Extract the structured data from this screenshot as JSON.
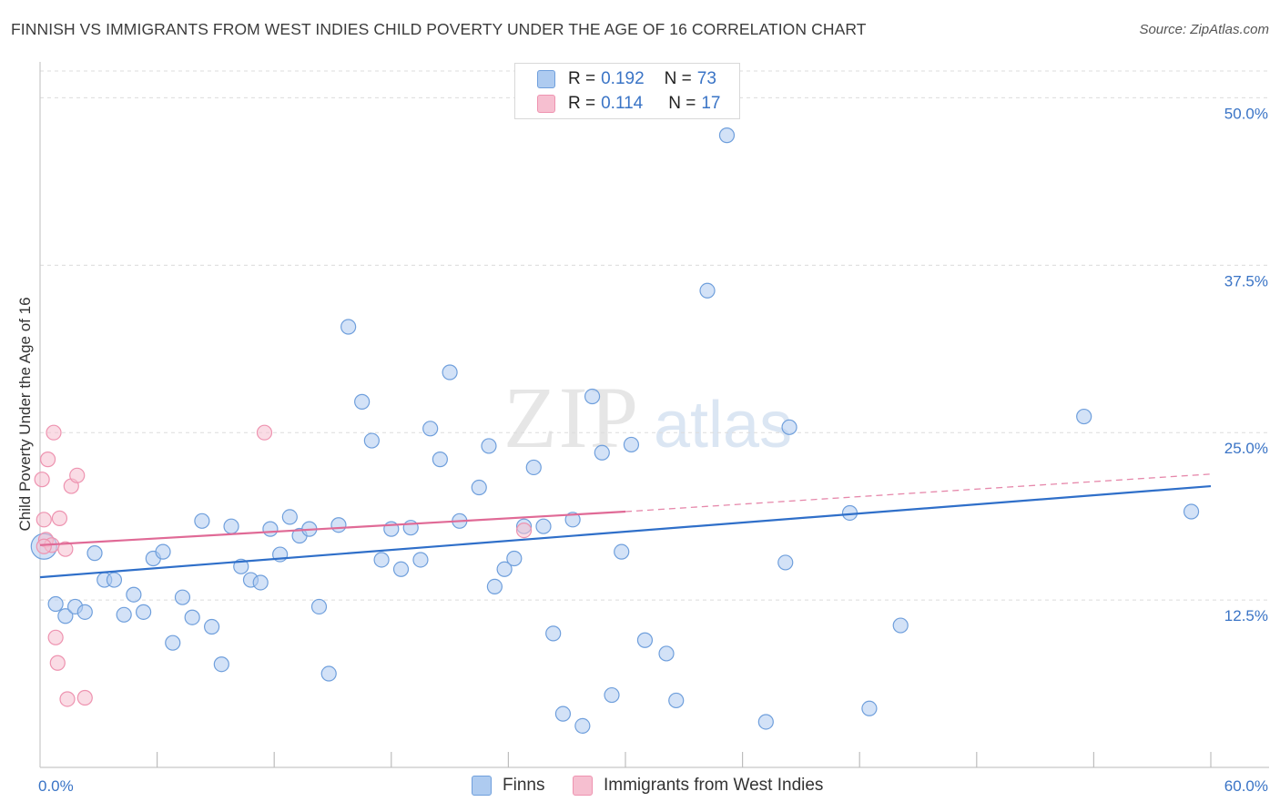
{
  "title": "FINNISH VS IMMIGRANTS FROM WEST INDIES CHILD POVERTY UNDER THE AGE OF 16 CORRELATION CHART",
  "source": "Source: ZipAtlas.com",
  "watermark": {
    "zip": "ZIP",
    "atlas": "atlas"
  },
  "legend": {
    "r_label": "R =",
    "n_label": "N =",
    "finns": {
      "r": "0.192",
      "n": "73"
    },
    "westindies": {
      "r": "0.114",
      "n": "17"
    }
  },
  "bottom_legend": {
    "finns": "Finns",
    "westindies": "Immigrants from West Indies"
  },
  "chart_data": {
    "type": "scatter",
    "title": "FINNISH VS IMMIGRANTS FROM WEST INDIES CHILD POVERTY UNDER THE AGE OF 16 CORRELATION CHART",
    "xlabel": "",
    "ylabel": "Child Poverty Under the Age of 16",
    "xlim": [
      0,
      60
    ],
    "ylim": [
      0,
      52
    ],
    "x_tick_labels": [
      "0.0%",
      "60.0%"
    ],
    "y_tick_values": [
      12.5,
      25.0,
      37.5,
      50.0
    ],
    "y_tick_labels": [
      "12.5%",
      "25.0%",
      "37.5%",
      "50.0%"
    ],
    "grid": true,
    "legend_position": "top-center",
    "colors": {
      "finns_fill": "#aecbf0",
      "finns_stroke": "#6f9fdc",
      "finns_line": "#2f6fc9",
      "wi_fill": "#f6bfd0",
      "wi_stroke": "#ee93b0",
      "wi_line": "#e06a96",
      "axis_text": "#3a74c6"
    },
    "series": [
      {
        "name": "Finns",
        "r": 0.192,
        "n": 73,
        "trend": {
          "x": [
            0,
            60
          ],
          "y": [
            14.2,
            21.0
          ]
        },
        "points": [
          [
            0.2,
            16.5
          ],
          [
            0.8,
            12.2
          ],
          [
            1.3,
            11.3
          ],
          [
            1.8,
            12.0
          ],
          [
            2.3,
            11.6
          ],
          [
            2.8,
            16.0
          ],
          [
            3.3,
            14.0
          ],
          [
            3.8,
            14.0
          ],
          [
            4.3,
            11.4
          ],
          [
            4.8,
            12.9
          ],
          [
            5.3,
            11.6
          ],
          [
            5.8,
            15.6
          ],
          [
            6.3,
            16.1
          ],
          [
            6.8,
            9.3
          ],
          [
            7.3,
            12.7
          ],
          [
            7.8,
            11.2
          ],
          [
            8.3,
            18.4
          ],
          [
            8.8,
            10.5
          ],
          [
            9.3,
            7.7
          ],
          [
            9.8,
            18.0
          ],
          [
            10.3,
            15.0
          ],
          [
            10.8,
            14.0
          ],
          [
            11.3,
            13.8
          ],
          [
            11.8,
            17.8
          ],
          [
            12.3,
            15.9
          ],
          [
            12.8,
            18.7
          ],
          [
            13.3,
            17.3
          ],
          [
            13.8,
            17.8
          ],
          [
            14.3,
            12.0
          ],
          [
            14.8,
            7.0
          ],
          [
            15.3,
            18.1
          ],
          [
            15.8,
            32.9
          ],
          [
            16.5,
            27.3
          ],
          [
            17.0,
            24.4
          ],
          [
            17.5,
            15.5
          ],
          [
            18.0,
            17.8
          ],
          [
            18.5,
            14.8
          ],
          [
            19.0,
            17.9
          ],
          [
            19.5,
            15.5
          ],
          [
            20.0,
            25.3
          ],
          [
            20.5,
            23.0
          ],
          [
            21.0,
            29.5
          ],
          [
            21.5,
            18.4
          ],
          [
            22.5,
            20.9
          ],
          [
            23.0,
            24.0
          ],
          [
            23.3,
            13.5
          ],
          [
            23.8,
            14.8
          ],
          [
            24.3,
            15.6
          ],
          [
            24.8,
            18.0
          ],
          [
            25.3,
            22.4
          ],
          [
            25.8,
            18.0
          ],
          [
            26.3,
            10.0
          ],
          [
            26.8,
            4.0
          ],
          [
            27.3,
            18.5
          ],
          [
            27.8,
            3.1
          ],
          [
            28.3,
            27.7
          ],
          [
            28.8,
            23.5
          ],
          [
            29.3,
            5.4
          ],
          [
            29.8,
            16.1
          ],
          [
            30.3,
            24.1
          ],
          [
            31.0,
            9.5
          ],
          [
            32.1,
            8.5
          ],
          [
            32.6,
            5.0
          ],
          [
            34.2,
            35.6
          ],
          [
            37.2,
            3.4
          ],
          [
            38.2,
            15.3
          ],
          [
            38.4,
            25.4
          ],
          [
            41.5,
            19.0
          ],
          [
            42.5,
            4.4
          ],
          [
            44.1,
            10.6
          ],
          [
            53.5,
            26.2
          ],
          [
            59.0,
            19.1
          ],
          [
            35.2,
            47.2
          ]
        ]
      },
      {
        "name": "Immigrants from West Indies",
        "r": 0.114,
        "n": 17,
        "trend": {
          "x": [
            0,
            30
          ],
          "y": [
            16.6,
            19.1
          ]
        },
        "trend_dashed": {
          "x": [
            30,
            60
          ],
          "y": [
            19.1,
            21.9
          ]
        },
        "points": [
          [
            0.1,
            21.5
          ],
          [
            0.2,
            18.5
          ],
          [
            0.3,
            17.0
          ],
          [
            0.4,
            23.0
          ],
          [
            0.6,
            16.6
          ],
          [
            0.7,
            25.0
          ],
          [
            0.8,
            9.7
          ],
          [
            0.9,
            7.8
          ],
          [
            1.0,
            18.6
          ],
          [
            1.3,
            16.3
          ],
          [
            1.4,
            5.1
          ],
          [
            1.6,
            21.0
          ],
          [
            1.9,
            21.8
          ],
          [
            2.3,
            5.2
          ],
          [
            11.5,
            25.0
          ],
          [
            24.8,
            17.7
          ],
          [
            0.2,
            16.5
          ]
        ]
      }
    ]
  }
}
